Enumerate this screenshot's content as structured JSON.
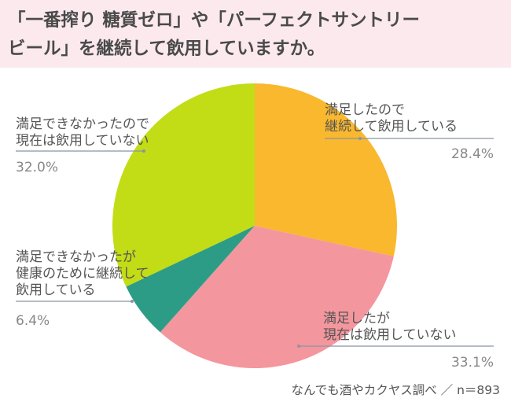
{
  "title": {
    "line1": "「一番搾り 糖質ゼロ」や「パーフェクトサントリー",
    "line2": "ビール」を継続して飲用していますか。"
  },
  "chart_data": {
    "type": "pie",
    "slices": [
      {
        "label_lines": [
          "満足したので",
          "継続して飲用している"
        ],
        "value": 28.4,
        "display": "28.4%",
        "color": "#f9b82d"
      },
      {
        "label_lines": [
          "満足したが",
          "現在は飲用していない"
        ],
        "value": 33.1,
        "display": "33.1%",
        "color": "#f4969e"
      },
      {
        "label_lines": [
          "満足できなかったが",
          "健康のために継続して",
          "飲用している"
        ],
        "value": 6.4,
        "display": "6.4%",
        "color": "#2d9c86"
      },
      {
        "label_lines": [
          "満足できなかったので",
          "現在は飲用していない"
        ],
        "value": 32.0,
        "display": "32.0%",
        "color": "#c2dc16"
      }
    ],
    "start_position": "top, clockwise"
  },
  "footer": {
    "source": "なんでも酒やカクヤス調べ ／ n＝893"
  },
  "colors": {
    "header_bg": "#fbe9ee",
    "title_text": "#4a4a4a",
    "label_text": "#555555",
    "percent_text": "#888888",
    "leader_line": "#8a95a5"
  }
}
